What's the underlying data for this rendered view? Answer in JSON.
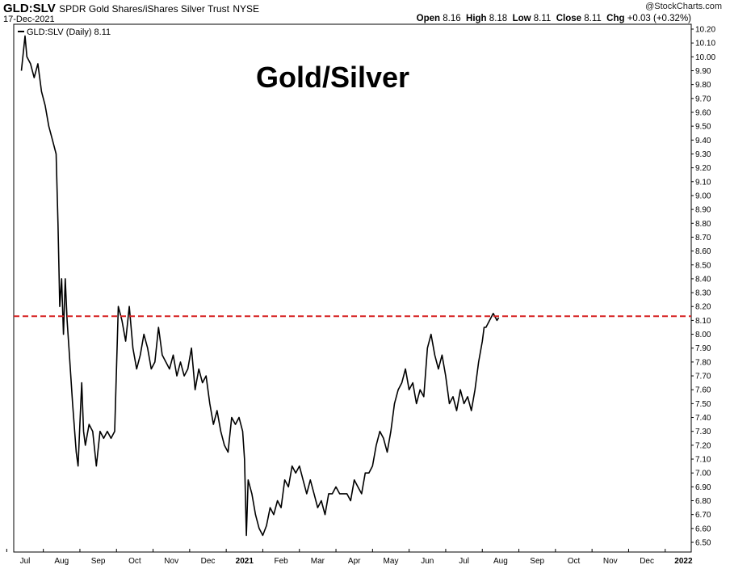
{
  "header": {
    "symbol": "GLD:SLV",
    "description": "SPDR Gold Shares/iShares Silver Trust",
    "exchange": "NYSE",
    "date": "17-Dec-2021",
    "copyright": "@StockCharts.com",
    "ohlc": {
      "open_label": "Open",
      "open": "8.16",
      "high_label": "High",
      "high": "8.18",
      "low_label": "Low",
      "low": "8.11",
      "close_label": "Close",
      "close": "8.11",
      "chg_label": "Chg",
      "chg": "+0.03 (+0.32%)"
    }
  },
  "chart_data": {
    "type": "line",
    "title": "Gold/Silver",
    "legend": "GLD:SLV (Daily) 8.11",
    "grid": false,
    "ylim": [
      6.45,
      10.23
    ],
    "yticks": [
      "10.20",
      "10.10",
      "10.00",
      "9.90",
      "9.80",
      "9.70",
      "9.60",
      "9.50",
      "9.40",
      "9.30",
      "9.20",
      "9.10",
      "9.00",
      "8.90",
      "8.80",
      "8.70",
      "8.60",
      "8.50",
      "8.40",
      "8.30",
      "8.20",
      "8.10",
      "8.00",
      "7.90",
      "7.80",
      "7.70",
      "7.60",
      "7.50",
      "7.40",
      "7.30",
      "7.20",
      "7.10",
      "7.00",
      "6.90",
      "6.80",
      "6.70",
      "6.60",
      "6.50"
    ],
    "xlabels": [
      {
        "label": "Jul",
        "bold": false
      },
      {
        "label": "Aug",
        "bold": false
      },
      {
        "label": "Sep",
        "bold": false
      },
      {
        "label": "Oct",
        "bold": false
      },
      {
        "label": "Nov",
        "bold": false
      },
      {
        "label": "Dec",
        "bold": false
      },
      {
        "label": "2021",
        "bold": true
      },
      {
        "label": "Feb",
        "bold": false
      },
      {
        "label": "Mar",
        "bold": false
      },
      {
        "label": "Apr",
        "bold": false
      },
      {
        "label": "May",
        "bold": false
      },
      {
        "label": "Jun",
        "bold": false
      },
      {
        "label": "Jul",
        "bold": false
      },
      {
        "label": "Aug",
        "bold": false
      },
      {
        "label": "Sep",
        "bold": false
      },
      {
        "label": "Oct",
        "bold": false
      },
      {
        "label": "Nov",
        "bold": false
      },
      {
        "label": "Dec",
        "bold": false
      },
      {
        "label": "2022",
        "bold": true
      }
    ],
    "x_range_months": [
      0,
      18.4
    ],
    "reference_line": {
      "value": 8.13,
      "style": "dashed",
      "color": "#d62020"
    },
    "series": [
      {
        "name": "GLD:SLV",
        "color": "#000000",
        "points": [
          [
            -0.1,
            9.9
          ],
          [
            0.0,
            10.15
          ],
          [
            0.05,
            10.0
          ],
          [
            0.15,
            9.95
          ],
          [
            0.25,
            9.85
          ],
          [
            0.35,
            9.95
          ],
          [
            0.45,
            9.75
          ],
          [
            0.55,
            9.65
          ],
          [
            0.65,
            9.5
          ],
          [
            0.75,
            9.4
          ],
          [
            0.85,
            9.3
          ],
          [
            0.9,
            8.8
          ],
          [
            0.95,
            8.2
          ],
          [
            1.0,
            8.4
          ],
          [
            1.05,
            8.0
          ],
          [
            1.1,
            8.4
          ],
          [
            1.15,
            8.1
          ],
          [
            1.2,
            7.9
          ],
          [
            1.3,
            7.5
          ],
          [
            1.4,
            7.15
          ],
          [
            1.45,
            7.05
          ],
          [
            1.5,
            7.35
          ],
          [
            1.55,
            7.65
          ],
          [
            1.6,
            7.3
          ],
          [
            1.65,
            7.2
          ],
          [
            1.75,
            7.35
          ],
          [
            1.85,
            7.3
          ],
          [
            1.95,
            7.05
          ],
          [
            2.05,
            7.3
          ],
          [
            2.15,
            7.25
          ],
          [
            2.25,
            7.3
          ],
          [
            2.35,
            7.25
          ],
          [
            2.45,
            7.3
          ],
          [
            2.55,
            8.2
          ],
          [
            2.65,
            8.1
          ],
          [
            2.75,
            7.95
          ],
          [
            2.85,
            8.2
          ],
          [
            2.95,
            7.9
          ],
          [
            3.05,
            7.75
          ],
          [
            3.15,
            7.85
          ],
          [
            3.25,
            8.0
          ],
          [
            3.35,
            7.9
          ],
          [
            3.45,
            7.75
          ],
          [
            3.55,
            7.8
          ],
          [
            3.65,
            8.05
          ],
          [
            3.75,
            7.85
          ],
          [
            3.85,
            7.8
          ],
          [
            3.95,
            7.75
          ],
          [
            4.05,
            7.85
          ],
          [
            4.15,
            7.7
          ],
          [
            4.25,
            7.8
          ],
          [
            4.35,
            7.7
          ],
          [
            4.45,
            7.75
          ],
          [
            4.55,
            7.9
          ],
          [
            4.65,
            7.6
          ],
          [
            4.75,
            7.75
          ],
          [
            4.85,
            7.65
          ],
          [
            4.95,
            7.7
          ],
          [
            5.05,
            7.5
          ],
          [
            5.15,
            7.35
          ],
          [
            5.25,
            7.45
          ],
          [
            5.35,
            7.3
          ],
          [
            5.45,
            7.2
          ],
          [
            5.55,
            7.15
          ],
          [
            5.65,
            7.4
          ],
          [
            5.75,
            7.35
          ],
          [
            5.85,
            7.4
          ],
          [
            5.95,
            7.3
          ],
          [
            6.0,
            7.1
          ],
          [
            6.05,
            6.55
          ],
          [
            6.1,
            6.95
          ],
          [
            6.2,
            6.85
          ],
          [
            6.3,
            6.7
          ],
          [
            6.4,
            6.6
          ],
          [
            6.5,
            6.55
          ],
          [
            6.6,
            6.62
          ],
          [
            6.7,
            6.75
          ],
          [
            6.8,
            6.7
          ],
          [
            6.9,
            6.8
          ],
          [
            7.0,
            6.75
          ],
          [
            7.1,
            6.95
          ],
          [
            7.2,
            6.9
          ],
          [
            7.3,
            7.05
          ],
          [
            7.4,
            7.0
          ],
          [
            7.5,
            7.05
          ],
          [
            7.6,
            6.95
          ],
          [
            7.7,
            6.85
          ],
          [
            7.8,
            6.95
          ],
          [
            7.9,
            6.85
          ],
          [
            8.0,
            6.75
          ],
          [
            8.1,
            6.8
          ],
          [
            8.2,
            6.7
          ],
          [
            8.3,
            6.85
          ],
          [
            8.4,
            6.85
          ],
          [
            8.5,
            6.9
          ],
          [
            8.6,
            6.85
          ],
          [
            8.7,
            6.85
          ],
          [
            8.8,
            6.85
          ],
          [
            8.9,
            6.8
          ],
          [
            9.0,
            6.95
          ],
          [
            9.1,
            6.9
          ],
          [
            9.2,
            6.85
          ],
          [
            9.3,
            7.0
          ],
          [
            9.4,
            7.0
          ],
          [
            9.5,
            7.05
          ],
          [
            9.6,
            7.2
          ],
          [
            9.7,
            7.3
          ],
          [
            9.8,
            7.25
          ],
          [
            9.9,
            7.15
          ],
          [
            10.0,
            7.3
          ],
          [
            10.1,
            7.5
          ],
          [
            10.2,
            7.6
          ],
          [
            10.3,
            7.65
          ],
          [
            10.4,
            7.75
          ],
          [
            10.5,
            7.6
          ],
          [
            10.6,
            7.65
          ],
          [
            10.7,
            7.5
          ],
          [
            10.8,
            7.6
          ],
          [
            10.9,
            7.55
          ],
          [
            11.0,
            7.9
          ],
          [
            11.1,
            8.0
          ],
          [
            11.2,
            7.85
          ],
          [
            11.3,
            7.75
          ],
          [
            11.4,
            7.85
          ],
          [
            11.5,
            7.7
          ],
          [
            11.6,
            7.5
          ],
          [
            11.7,
            7.55
          ],
          [
            11.8,
            7.45
          ],
          [
            11.9,
            7.6
          ],
          [
            12.0,
            7.5
          ],
          [
            12.1,
            7.55
          ],
          [
            12.2,
            7.45
          ],
          [
            12.3,
            7.6
          ],
          [
            12.4,
            7.8
          ],
          [
            12.5,
            7.95
          ],
          [
            12.55,
            8.05
          ],
          [
            12.6,
            8.05
          ],
          [
            12.7,
            8.1
          ],
          [
            12.8,
            8.15
          ],
          [
            12.9,
            8.1
          ],
          [
            12.95,
            8.12
          ]
        ]
      }
    ]
  }
}
